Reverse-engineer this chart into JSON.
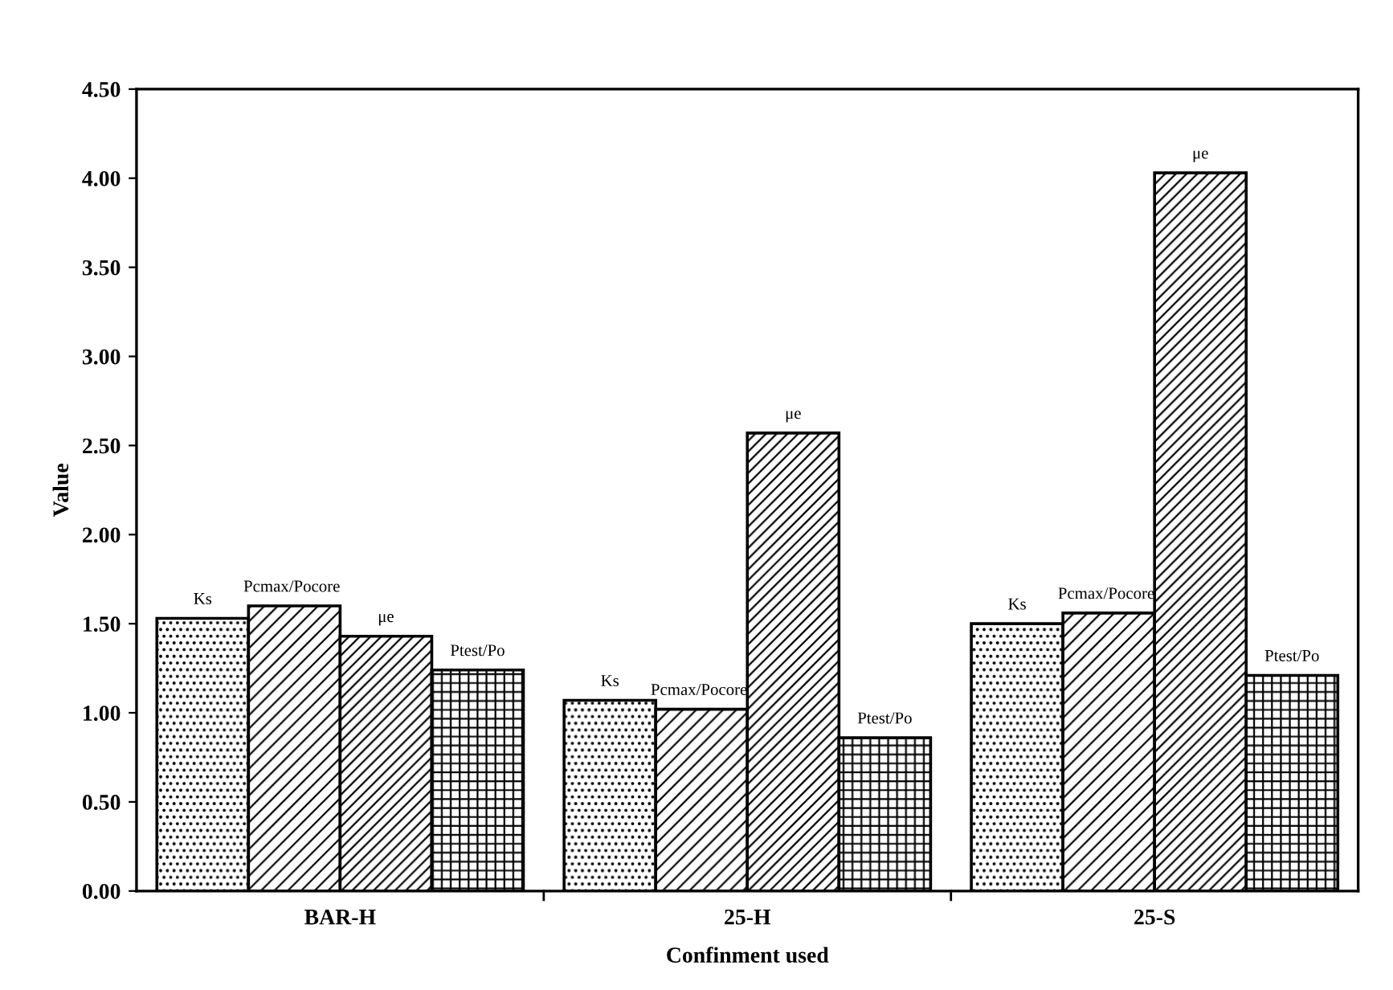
{
  "chart_data": {
    "type": "bar",
    "xlabel": "Confinment used",
    "ylabel": "Value",
    "categories": [
      "BAR-H",
      "25-H",
      "25-S"
    ],
    "series": [
      {
        "name": "Ks",
        "color": "#000000",
        "values": [
          1.53,
          1.07,
          1.5
        ]
      },
      {
        "name": "Pcmax/Pocore",
        "color": "#000000",
        "values": [
          1.6,
          1.02,
          1.56
        ]
      },
      {
        "name": "μe",
        "color": "#000000",
        "values": [
          1.43,
          2.57,
          4.03
        ]
      },
      {
        "name": "Ptest/Po",
        "color": "#000000",
        "values": [
          1.24,
          0.86,
          1.21
        ]
      }
    ],
    "ylim": [
      0,
      4.5
    ],
    "yticks": [
      {
        "value": 0,
        "label": "0.00"
      },
      {
        "value": 0.5,
        "label": "0.50"
      },
      {
        "value": 1.0,
        "label": "1.00"
      },
      {
        "value": 1.5,
        "label": "1.50"
      },
      {
        "value": 2.0,
        "label": "2.00"
      },
      {
        "value": 2.5,
        "label": "2.50"
      },
      {
        "value": 3.0,
        "label": "3.00"
      },
      {
        "value": 3.5,
        "label": "3.50"
      },
      {
        "value": 4.0,
        "label": "4.00"
      },
      {
        "value": 4.5,
        "label": "4.50"
      }
    ],
    "grid": false,
    "legend": false
  }
}
